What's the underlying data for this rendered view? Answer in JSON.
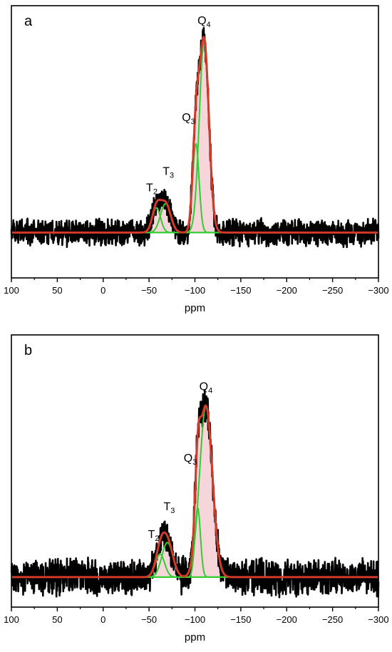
{
  "chart_data": [
    {
      "type": "line",
      "panel_label": "a",
      "xlabel": "ppm",
      "ylabel": "",
      "xlim": [
        100,
        -300
      ],
      "x_ticks": [
        100,
        50,
        0,
        -50,
        -100,
        -150,
        -200,
        -250,
        -300
      ],
      "x_tick_labels": [
        "100",
        "50",
        "0",
        "−50",
        "−100",
        "−150",
        "−200",
        "−250",
        "−300"
      ],
      "grid": false,
      "annotations": [
        {
          "base": "T",
          "sub": "2",
          "x": -53,
          "y": 0.2
        },
        {
          "base": "T",
          "sub": "3",
          "x": -71,
          "y": 0.28
        },
        {
          "base": "Q",
          "sub": "3",
          "x": -93,
          "y": 0.54
        },
        {
          "base": "Q",
          "sub": "4",
          "x": -110,
          "y": 1.01
        }
      ],
      "baseline": 0,
      "noise_amplitude": 0.05,
      "peaks": [
        {
          "name": "T2",
          "center": -58,
          "height": 0.12,
          "sigma": 4.5
        },
        {
          "name": "T3",
          "center": -68,
          "height": 0.14,
          "sigma": 5.5
        },
        {
          "name": "Q3",
          "center": -101,
          "height": 0.43,
          "sigma": 3.5
        },
        {
          "name": "Q4",
          "center": -110,
          "height": 0.93,
          "sigma": 5.2
        }
      ],
      "series_colors": {
        "experimental": "#000000",
        "fit_envelope": "#d23a2a",
        "components": "#33cc33",
        "shading": "#f3c8cf"
      }
    },
    {
      "type": "line",
      "panel_label": "b",
      "xlabel": "ppm",
      "ylabel": "",
      "xlim": [
        100,
        -300
      ],
      "x_ticks": [
        100,
        50,
        0,
        -50,
        -100,
        -150,
        -200,
        -250,
        -300
      ],
      "x_tick_labels": [
        "100",
        "50",
        "0",
        "−50",
        "−100",
        "−150",
        "−200",
        "−250",
        "−300"
      ],
      "grid": false,
      "annotations": [
        {
          "base": "T",
          "sub": "2",
          "x": -55,
          "y": 0.17
        },
        {
          "base": "T",
          "sub": "3",
          "x": -72,
          "y": 0.29
        },
        {
          "base": "Q",
          "sub": "3",
          "x": -95,
          "y": 0.5
        },
        {
          "base": "Q",
          "sub": "4",
          "x": -112,
          "y": 0.81
        }
      ],
      "baseline": 0,
      "noise_amplitude": 0.06,
      "peaks": [
        {
          "name": "T2",
          "center": -62,
          "height": 0.1,
          "sigma": 5.0
        },
        {
          "name": "T3",
          "center": -70,
          "height": 0.15,
          "sigma": 6.0
        },
        {
          "name": "Q3",
          "center": -103,
          "height": 0.3,
          "sigma": 3.0
        },
        {
          "name": "Q4",
          "center": -112,
          "height": 0.74,
          "sigma": 7.0
        }
      ],
      "series_colors": {
        "experimental": "#000000",
        "fit_envelope": "#d23a2a",
        "components": "#33cc33",
        "shading": "#f3c8cf"
      }
    }
  ]
}
